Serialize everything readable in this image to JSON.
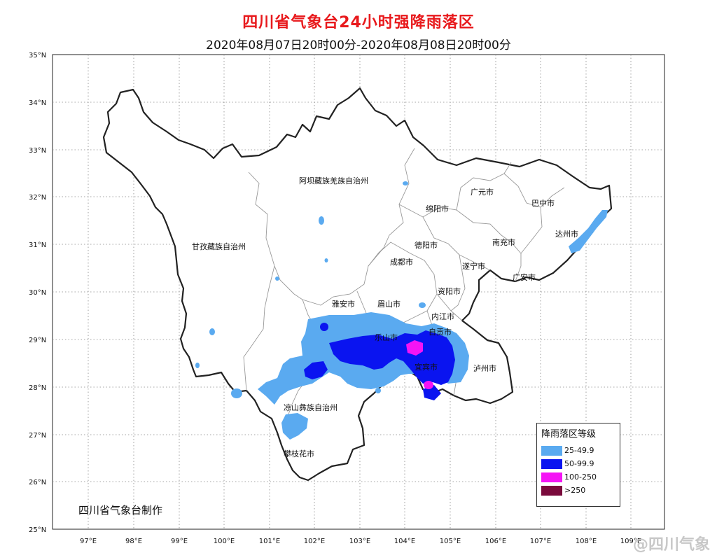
{
  "title": "四川省气象台24小时强降雨落区",
  "subtitle": "2020年08月07日20时00分-2020年08月08日20时00分",
  "credit": "四川省气象台制作",
  "watermark": "@四川气象",
  "lat_ticks": [
    "25°N",
    "26°N",
    "27°N",
    "28°N",
    "29°N",
    "30°N",
    "31°N",
    "32°N",
    "33°N",
    "34°N",
    "35°N"
  ],
  "lon_ticks": [
    "97°E",
    "98°E",
    "99°E",
    "100°E",
    "101°E",
    "102°E",
    "103°E",
    "104°E",
    "105°E",
    "106°E",
    "107°E",
    "108°E",
    "109°E"
  ],
  "regions": [
    {
      "name": "阿坝藏族羌族自治州"
    },
    {
      "name": "甘孜藏族自治州"
    },
    {
      "name": "广元市"
    },
    {
      "name": "巴中市"
    },
    {
      "name": "绵阳市"
    },
    {
      "name": "达州市"
    },
    {
      "name": "德阳市"
    },
    {
      "name": "南充市"
    },
    {
      "name": "成都市"
    },
    {
      "name": "遂宁市"
    },
    {
      "name": "广安市"
    },
    {
      "name": "资阳市"
    },
    {
      "name": "雅安市"
    },
    {
      "name": "眉山市"
    },
    {
      "name": "内江市"
    },
    {
      "name": "乐山市"
    },
    {
      "name": "自贡市"
    },
    {
      "name": "宜宾市"
    },
    {
      "name": "泸州市"
    },
    {
      "name": "凉山彝族自治州"
    },
    {
      "name": "攀枝花市"
    }
  ],
  "legend": {
    "title": "降雨落区等级",
    "items": [
      {
        "label": "25-49.9",
        "color": "#5aaaf0"
      },
      {
        "label": "50-99.9",
        "color": "#0a14f0"
      },
      {
        "label": "100-250",
        "color": "#f514f5"
      },
      {
        "label": ">250",
        "color": "#7a0a3c"
      }
    ]
  }
}
